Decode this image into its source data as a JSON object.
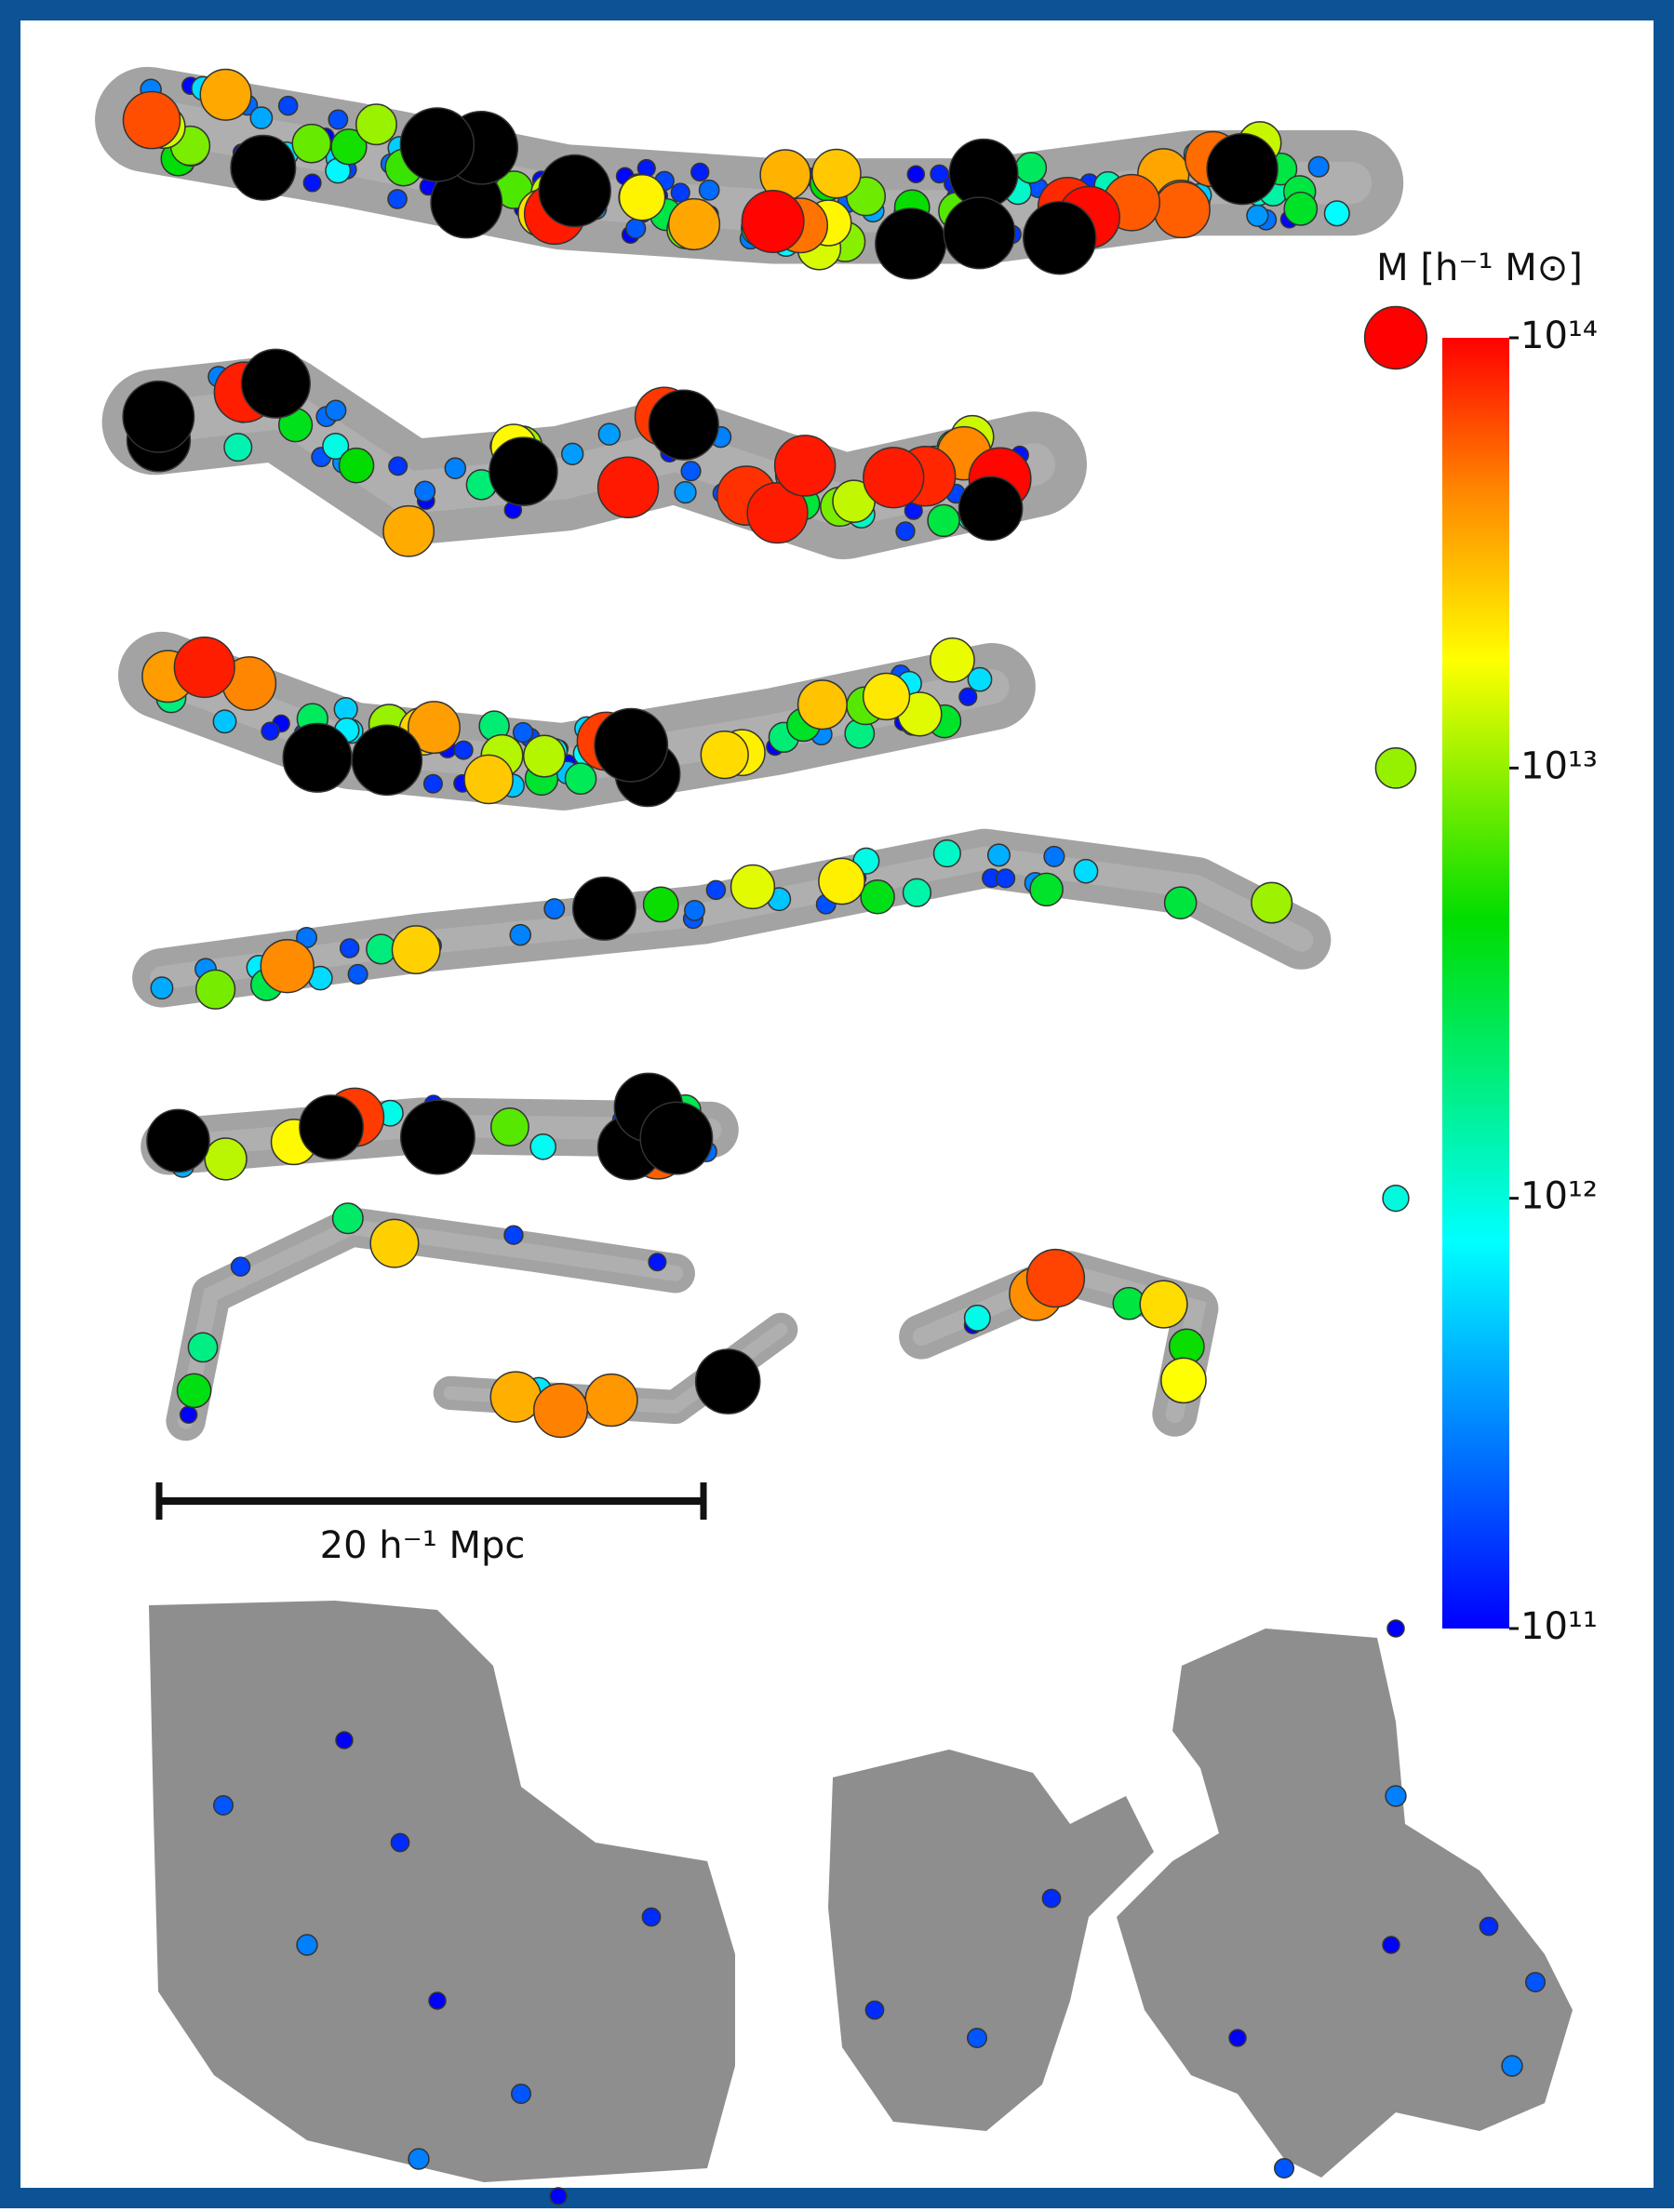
{
  "colorbar": {
    "label": "M [h⁻¹ M⊙]",
    "scale": "log",
    "lim": [
      100000000000,
      100000000000000
    ],
    "ticks": [
      {
        "value": 100000000000000,
        "label": "10¹⁴"
      },
      {
        "value": 10000000000000,
        "label": "10¹³"
      },
      {
        "value": 1000000000000,
        "label": "10¹²"
      },
      {
        "value": 100000000000,
        "label": "10¹¹"
      }
    ]
  },
  "scale_bar": {
    "label": "20 h⁻¹ Mpc",
    "length": 20
  }
}
